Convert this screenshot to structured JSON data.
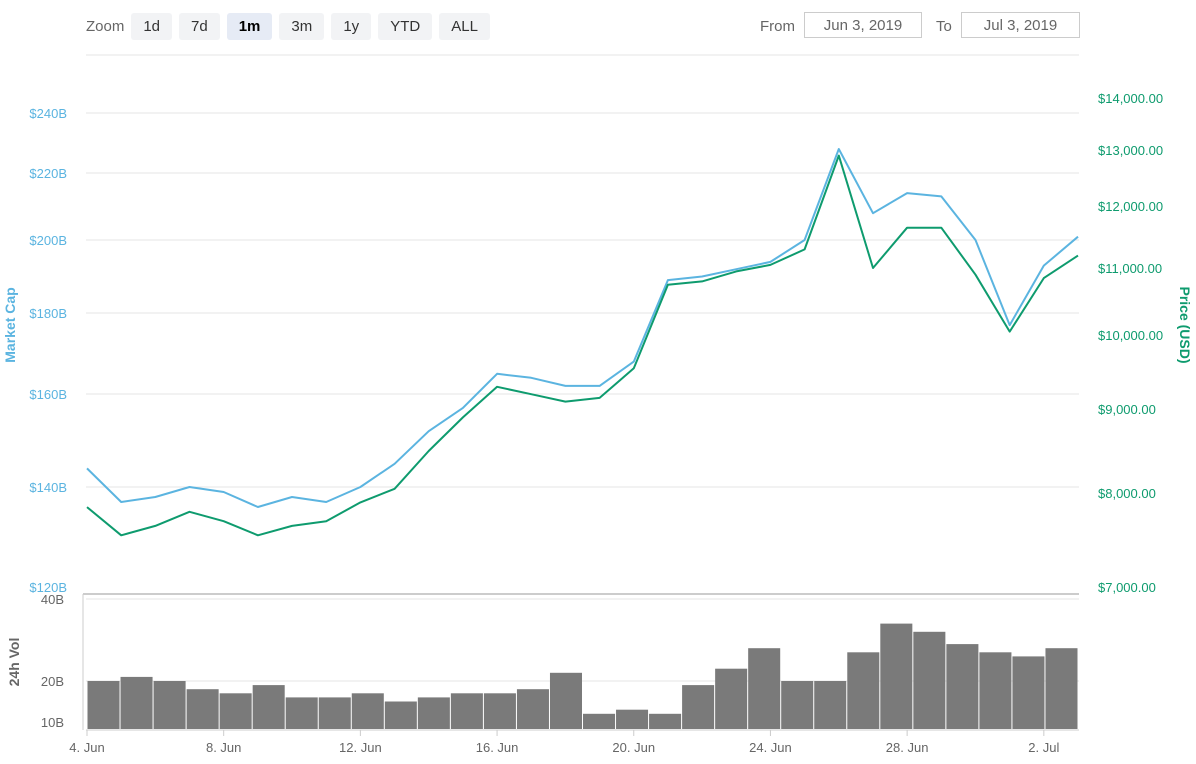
{
  "toolbar": {
    "zoom_label": "Zoom",
    "zoom_buttons": [
      "1d",
      "7d",
      "1m",
      "3m",
      "1y",
      "YTD",
      "ALL"
    ],
    "active_zoom": "1m",
    "from_label": "From",
    "from_value": "Jun 3, 2019",
    "to_label": "To",
    "to_value": "Jul 3, 2019"
  },
  "colors": {
    "market_cap": "#5bb4e0",
    "price": "#0e9b6e",
    "volume": "#7a7a7a",
    "grid": "#e6e6e6",
    "axis_text": "#666666"
  },
  "chart_data": [
    {
      "type": "line",
      "title": "",
      "x": [
        "Jun 4",
        "Jun 5",
        "Jun 6",
        "Jun 7",
        "Jun 8",
        "Jun 9",
        "Jun 10",
        "Jun 11",
        "Jun 12",
        "Jun 13",
        "Jun 14",
        "Jun 15",
        "Jun 16",
        "Jun 17",
        "Jun 18",
        "Jun 19",
        "Jun 20",
        "Jun 21",
        "Jun 22",
        "Jun 23",
        "Jun 24",
        "Jun 25",
        "Jun 26",
        "Jun 27",
        "Jun 28",
        "Jun 29",
        "Jun 30",
        "Jul 1",
        "Jul 2",
        "Jul 3"
      ],
      "x_tick_labels": [
        "4. Jun",
        "8. Jun",
        "12. Jun",
        "16. Jun",
        "20. Jun",
        "24. Jun",
        "28. Jun",
        "2. Jul"
      ],
      "series": [
        {
          "name": "Market Cap",
          "axis": "left",
          "values": [
            144,
            137,
            138,
            140,
            139,
            136,
            138,
            137,
            140,
            145,
            152,
            157,
            165,
            164,
            162,
            162,
            168,
            189,
            190,
            192,
            194,
            200,
            228,
            208,
            214,
            213,
            200,
            177,
            193,
            201
          ]
        },
        {
          "name": "Price (USD)",
          "axis": "right",
          "values": [
            7850,
            7550,
            7650,
            7800,
            7700,
            7550,
            7650,
            7700,
            7900,
            8050,
            8500,
            8900,
            9300,
            9200,
            9100,
            9150,
            9550,
            10750,
            10800,
            10950,
            11050,
            11300,
            12900,
            11000,
            11650,
            11650,
            10900,
            10050,
            10850,
            11200
          ]
        }
      ],
      "yaxis_left": {
        "label": "Market Cap",
        "ticks": [
          "$120B",
          "$140B",
          "$160B",
          "$180B",
          "$200B",
          "$220B",
          "$240B"
        ]
      },
      "yaxis_right": {
        "label": "Price (USD)",
        "ticks": [
          "$7,000.00",
          "$8,000.00",
          "$9,000.00",
          "$10,000.00",
          "$11,000.00",
          "$12,000.00",
          "$13,000.00",
          "$14,000.00"
        ]
      },
      "grid": true,
      "legend": "none"
    },
    {
      "type": "bar",
      "title": "",
      "yaxis_left": {
        "label": "24h Vol",
        "ticks": [
          "10B",
          "20B",
          "40B"
        ]
      },
      "values": [
        20,
        21,
        20,
        18,
        17,
        19,
        16,
        16,
        17,
        15,
        16,
        17,
        17,
        18,
        22,
        12,
        13,
        12,
        19,
        23,
        28,
        20,
        20,
        27,
        34,
        32,
        29,
        27,
        26,
        28
      ],
      "unit": "B"
    }
  ]
}
